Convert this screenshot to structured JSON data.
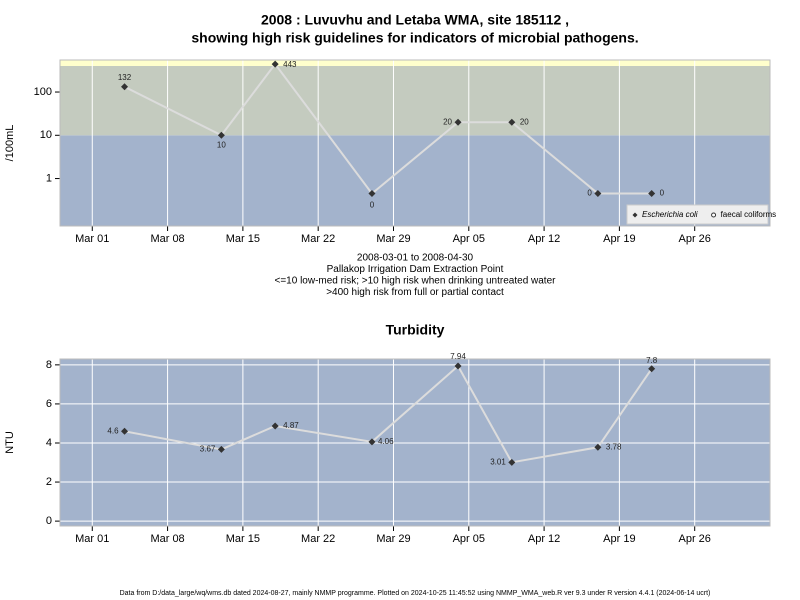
{
  "chart_data": [
    {
      "type": "line",
      "title": "2008 : Luvuvhu and Letaba WMA, site 185112 ,",
      "subtitle": "showing high risk guidelines for indicators of microbial pathogens.",
      "y_label": "/100mL",
      "log_scale": true,
      "x": [
        "2008-03-04",
        "2008-03-13",
        "2008-03-18",
        "2008-03-27",
        "2008-04-04",
        "2008-04-09",
        "2008-04-17",
        "2008-04-22"
      ],
      "series": [
        {
          "name": "Escherichia coli",
          "color": "#333333",
          "line_color": "#dcdcdc",
          "marker": "diamond",
          "values": [
            132,
            10,
            443,
            0.45,
            20,
            20,
            0.45,
            0.45
          ],
          "value_labels": [
            "132",
            "10",
            "443",
            "0",
            "20",
            "20",
            "0",
            "0"
          ]
        },
        {
          "name": "faecal coliforms",
          "color": "#ffffff",
          "line_color": "#dcdcdc",
          "marker": "circle",
          "values": [
            null,
            null,
            null,
            null,
            null,
            null,
            null,
            null
          ]
        }
      ],
      "bands": [
        {
          "to": 10,
          "color": "#a3b3cc"
        },
        {
          "from": 10,
          "to": 400,
          "color": "#c4cbbf"
        },
        {
          "from": 400,
          "color": "#ffffcc"
        }
      ],
      "xlim": [
        "2008-02-27",
        "2008-05-03"
      ],
      "xticks": [
        {
          "value": "2008-03-01",
          "label": "Mar 01"
        },
        {
          "value": "2008-03-08",
          "label": "Mar 08"
        },
        {
          "value": "2008-03-15",
          "label": "Mar 15"
        },
        {
          "value": "2008-03-22",
          "label": "Mar 22"
        },
        {
          "value": "2008-03-29",
          "label": "Mar 29"
        },
        {
          "value": "2008-04-05",
          "label": "Apr 05"
        },
        {
          "value": "2008-04-12",
          "label": "Apr 12"
        },
        {
          "value": "2008-04-19",
          "label": "Apr 19"
        },
        {
          "value": "2008-04-26",
          "label": "Apr 26"
        }
      ],
      "ylim": [
        0.08,
        550
      ],
      "yticks": [
        1,
        10,
        100
      ],
      "grid": "x",
      "legend": "bottom-right",
      "notes": [
        "2008-03-01 to 2008-04-30",
        "Pallakop Irrigation Dam Extraction Point",
        "<=10 low-med risk; >10 high risk when drinking untreated water",
        ">400 high risk from full or partial contact"
      ]
    },
    {
      "type": "line",
      "title": "Turbidity",
      "y_label": "NTU",
      "log_scale": false,
      "background": "#a3b3cc",
      "x": [
        "2008-03-04",
        "2008-03-13",
        "2008-03-18",
        "2008-03-27",
        "2008-04-04",
        "2008-04-09",
        "2008-04-17",
        "2008-04-22"
      ],
      "series": [
        {
          "color": "#333333",
          "line_color": "#dcdcdc",
          "marker": "diamond",
          "values": [
            4.6,
            3.67,
            4.87,
            4.06,
            7.94,
            3.01,
            3.78,
            7.8
          ]
        }
      ],
      "xlim": [
        "2008-02-27",
        "2008-05-03"
      ],
      "xticks": [
        {
          "value": "2008-03-01",
          "label": "Mar 01"
        },
        {
          "value": "2008-03-08",
          "label": "Mar 08"
        },
        {
          "value": "2008-03-15",
          "label": "Mar 15"
        },
        {
          "value": "2008-03-22",
          "label": "Mar 22"
        },
        {
          "value": "2008-03-29",
          "label": "Mar 29"
        },
        {
          "value": "2008-04-05",
          "label": "Apr 05"
        },
        {
          "value": "2008-04-12",
          "label": "Apr 12"
        },
        {
          "value": "2008-04-19",
          "label": "Apr 19"
        },
        {
          "value": "2008-04-26",
          "label": "Apr 26"
        }
      ],
      "ylim": [
        -0.25,
        8.3
      ],
      "yticks": [
        0,
        2,
        4,
        6,
        8
      ],
      "grid": "both"
    }
  ],
  "footer": "Data from D:/data_large/wq/wms.db dated 2024-08-27, mainly NMMP programme. Plotted on 2024-10-25 11:45:52 using NMMP_WMA_web.R ver 9.3 under R version 4.4.1 (2024-06-14 ucrt)"
}
